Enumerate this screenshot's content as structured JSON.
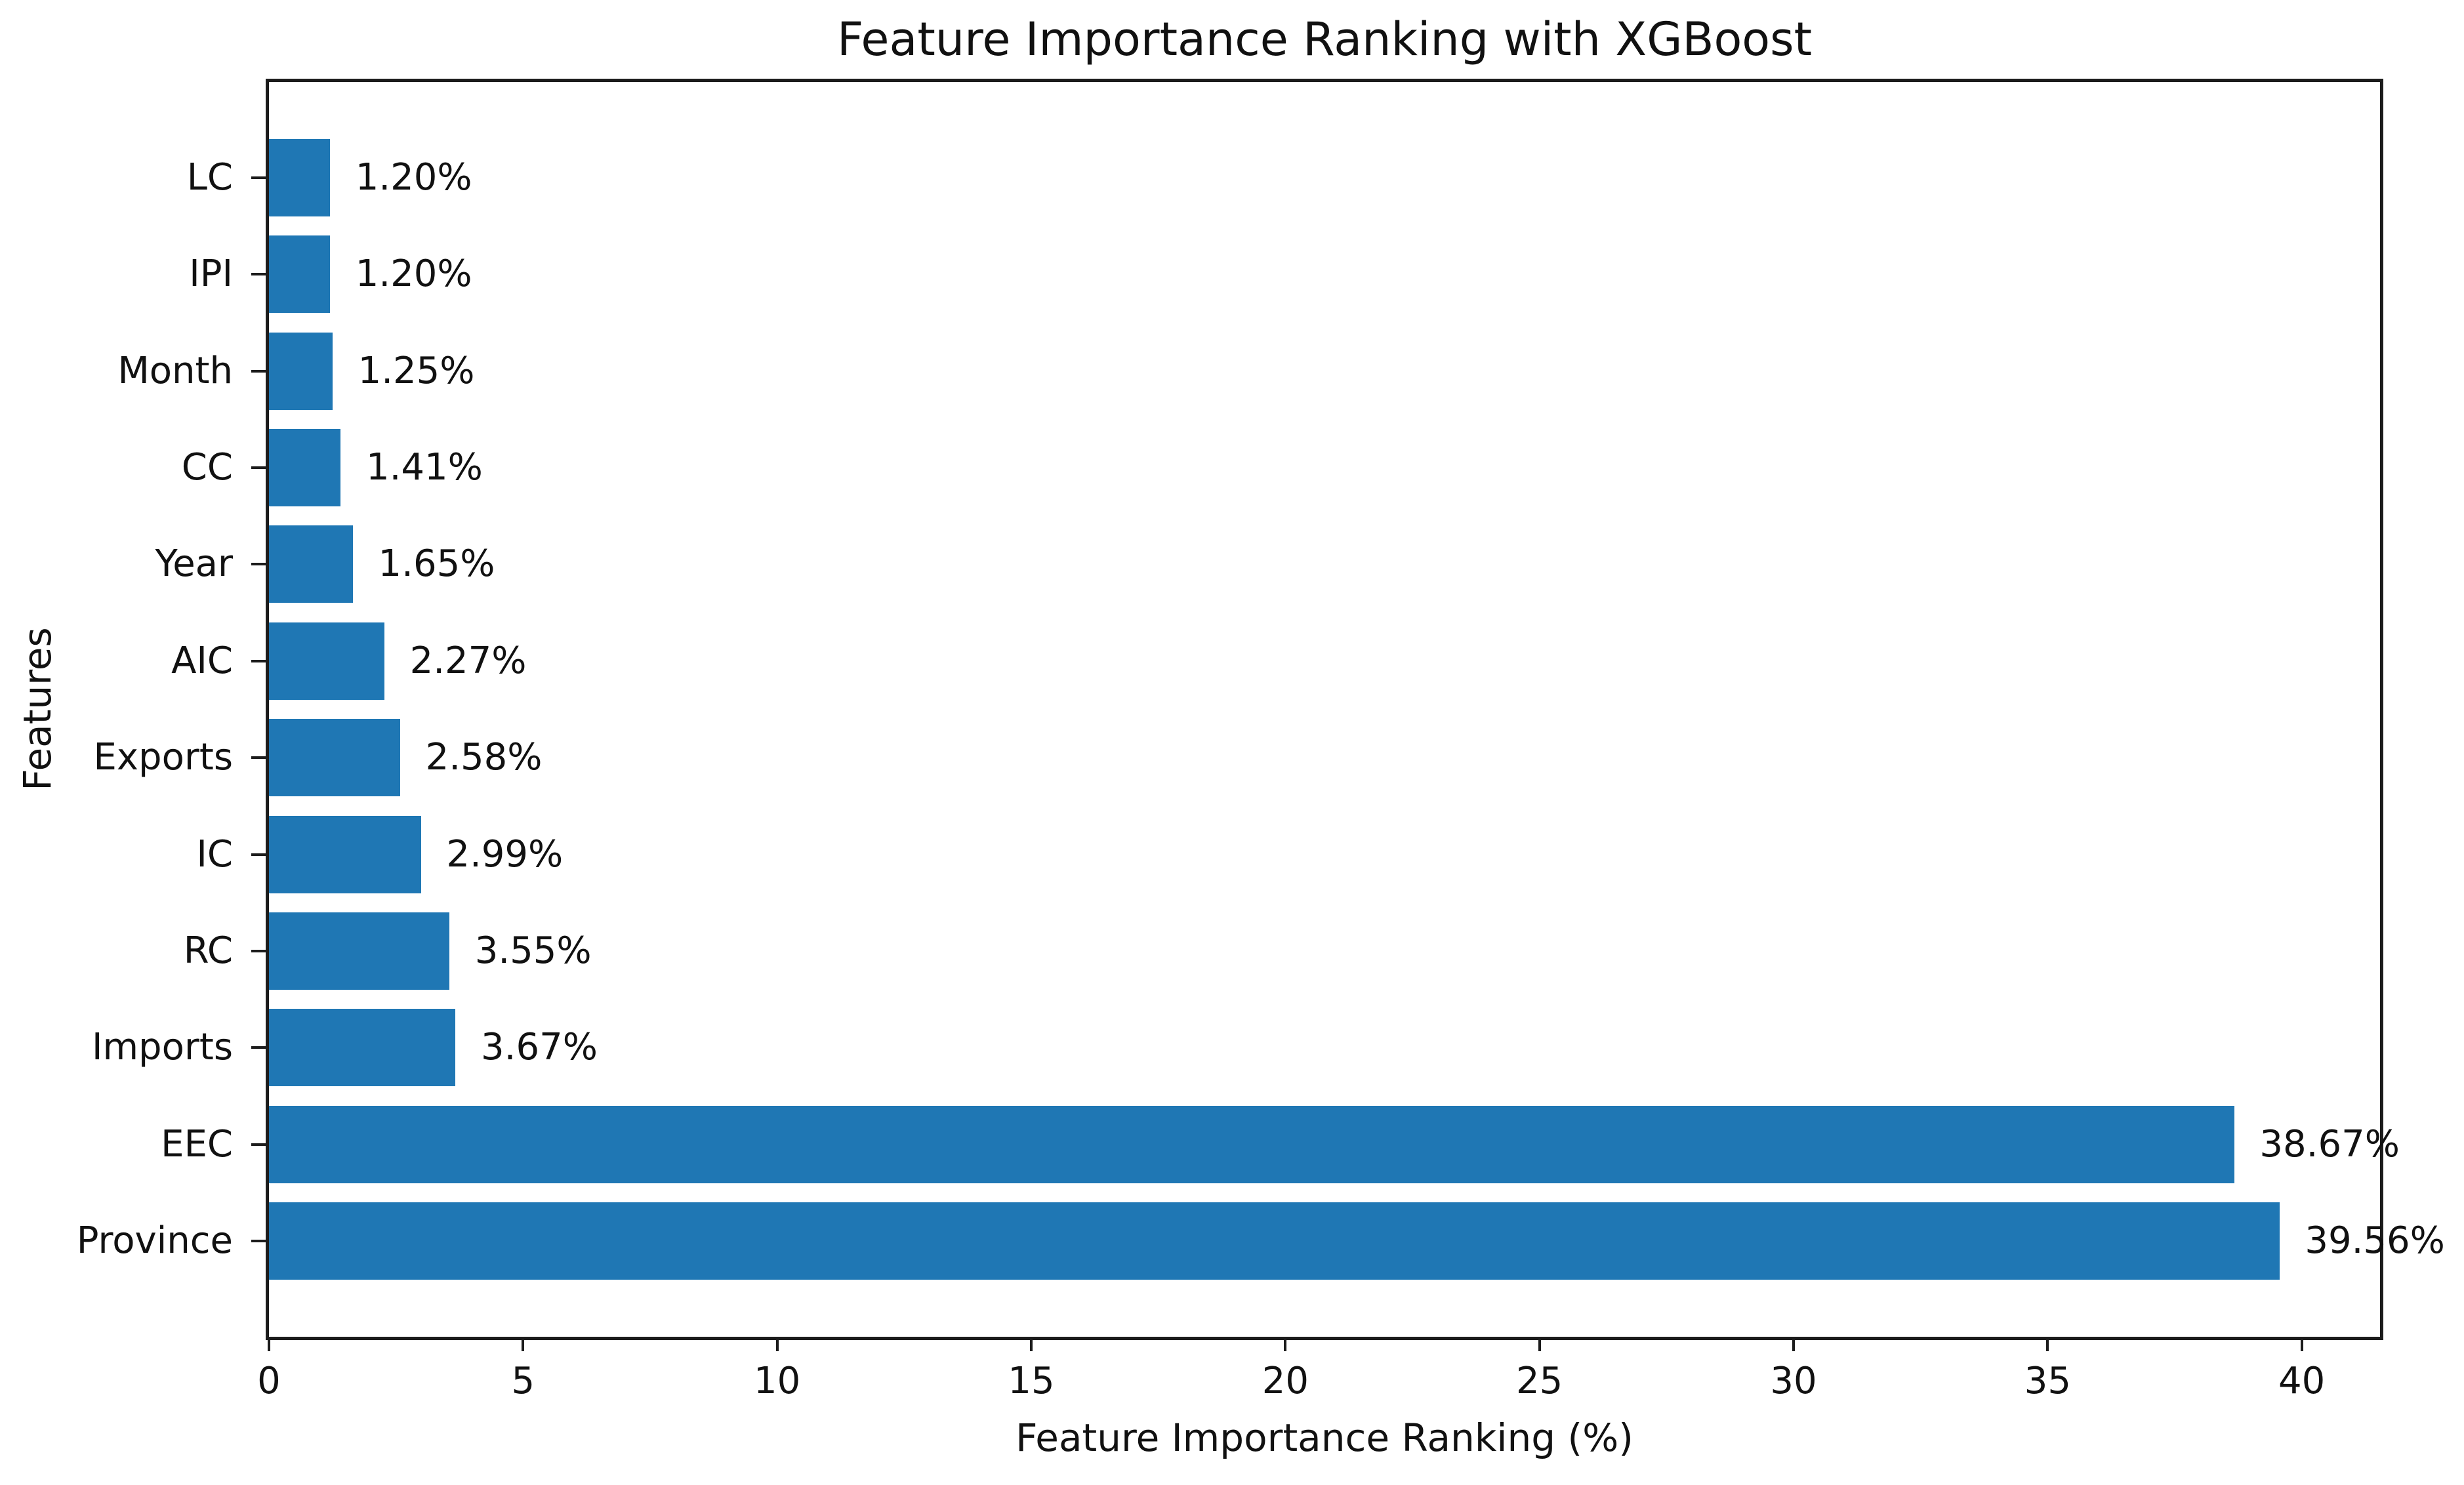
{
  "chart_data": {
    "type": "bar",
    "orientation": "horizontal",
    "title": "Feature Importance Ranking with XGBoost",
    "xlabel": "Feature Importance Ranking (%)",
    "ylabel": "Features",
    "category_order": "top_to_bottom",
    "categories": [
      "LC",
      "IPI",
      "Month",
      "CC",
      "Year",
      "AIC",
      "Exports",
      "IC",
      "RC",
      "Imports",
      "EEC",
      "Province"
    ],
    "values": [
      1.2,
      1.2,
      1.25,
      1.41,
      1.65,
      2.27,
      2.58,
      2.99,
      3.55,
      3.67,
      38.67,
      39.56
    ],
    "bar_labels": [
      "1.20%",
      "1.20%",
      "1.25%",
      "1.41%",
      "1.65%",
      "2.27%",
      "2.58%",
      "2.99%",
      "3.55%",
      "3.67%",
      "38.67%",
      "39.56%"
    ],
    "x_tick_values": [
      0,
      5,
      10,
      15,
      20,
      25,
      30,
      35,
      40
    ],
    "x_tick_labels": [
      "0",
      "5",
      "10",
      "15",
      "20",
      "25",
      "30",
      "35",
      "40"
    ],
    "xlim": [
      0,
      41.54
    ],
    "bar_color": "#1f77b4",
    "grid": false,
    "legend": null
  }
}
